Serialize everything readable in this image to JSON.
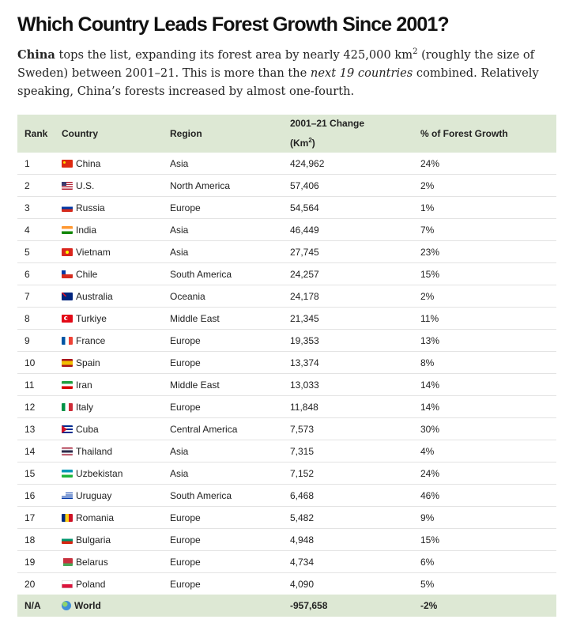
{
  "title": "Which Country Leads Forest Growth Since 2001?",
  "intro": {
    "bold_lead": "China",
    "part1": " tops the list, expanding its forest area by nearly 425,000 km",
    "sup": "2",
    "part2": " (roughly the size of Sweden) between 2001–21. This is more than the ",
    "italic": "next 19 countries",
    "part3": " combined. Relatively speaking, China’s forests increased by almost one-fourth."
  },
  "table": {
    "headers": {
      "rank": "Rank",
      "country": "Country",
      "region": "Region",
      "change_line1": "2001–21 Change",
      "change_unit": "(Km",
      "change_sup": "2",
      "change_close": ")",
      "pct": "% of Forest Growth"
    },
    "rows": [
      {
        "rank": "1",
        "flag": "f-cn",
        "country": "China",
        "region": "Asia",
        "change": "424,962",
        "pct": "24%"
      },
      {
        "rank": "2",
        "flag": "f-us",
        "country": "U.S.",
        "region": "North America",
        "change": "57,406",
        "pct": "2%"
      },
      {
        "rank": "3",
        "flag": "f-ru",
        "country": "Russia",
        "region": "Europe",
        "change": "54,564",
        "pct": "1%"
      },
      {
        "rank": "4",
        "flag": "f-in",
        "country": "India",
        "region": "Asia",
        "change": "46,449",
        "pct": "7%"
      },
      {
        "rank": "5",
        "flag": "f-vn",
        "country": "Vietnam",
        "region": "Asia",
        "change": "27,745",
        "pct": "23%"
      },
      {
        "rank": "6",
        "flag": "f-cl",
        "country": "Chile",
        "region": "South America",
        "change": "24,257",
        "pct": "15%"
      },
      {
        "rank": "7",
        "flag": "f-au",
        "country": "Australia",
        "region": "Oceania",
        "change": "24,178",
        "pct": "2%"
      },
      {
        "rank": "8",
        "flag": "f-tr",
        "country": "Turkiye",
        "region": "Middle East",
        "change": "21,345",
        "pct": "11%"
      },
      {
        "rank": "9",
        "flag": "f-fr",
        "country": "France",
        "region": "Europe",
        "change": "19,353",
        "pct": "13%"
      },
      {
        "rank": "10",
        "flag": "f-es",
        "country": "Spain",
        "region": "Europe",
        "change": "13,374",
        "pct": "8%"
      },
      {
        "rank": "11",
        "flag": "f-ir",
        "country": "Iran",
        "region": "Middle East",
        "change": "13,033",
        "pct": "14%"
      },
      {
        "rank": "12",
        "flag": "f-it",
        "country": "Italy",
        "region": "Europe",
        "change": "11,848",
        "pct": "14%"
      },
      {
        "rank": "13",
        "flag": "f-cu",
        "country": "Cuba",
        "region": "Central America",
        "change": "7,573",
        "pct": "30%"
      },
      {
        "rank": "14",
        "flag": "f-th",
        "country": "Thailand",
        "region": "Asia",
        "change": "7,315",
        "pct": "4%"
      },
      {
        "rank": "15",
        "flag": "f-uz",
        "country": "Uzbekistan",
        "region": "Asia",
        "change": "7,152",
        "pct": "24%"
      },
      {
        "rank": "16",
        "flag": "f-uy",
        "country": "Uruguay",
        "region": "South America",
        "change": "6,468",
        "pct": "46%"
      },
      {
        "rank": "17",
        "flag": "f-ro",
        "country": "Romania",
        "region": "Europe",
        "change": "5,482",
        "pct": "9%"
      },
      {
        "rank": "18",
        "flag": "f-bg",
        "country": "Bulgaria",
        "region": "Europe",
        "change": "4,948",
        "pct": "15%"
      },
      {
        "rank": "19",
        "flag": "f-by",
        "country": "Belarus",
        "region": "Europe",
        "change": "4,734",
        "pct": "6%"
      },
      {
        "rank": "20",
        "flag": "f-pl",
        "country": "Poland",
        "region": "Europe",
        "change": "4,090",
        "pct": "5%"
      }
    ],
    "footer": {
      "rank": "N/A",
      "icon": "globe-icon",
      "country": "World",
      "region": "",
      "change": "-957,658",
      "pct": "-2%"
    }
  },
  "colors": {
    "header_bg": "#dde8d4",
    "row_border": "#e3e3e3"
  }
}
